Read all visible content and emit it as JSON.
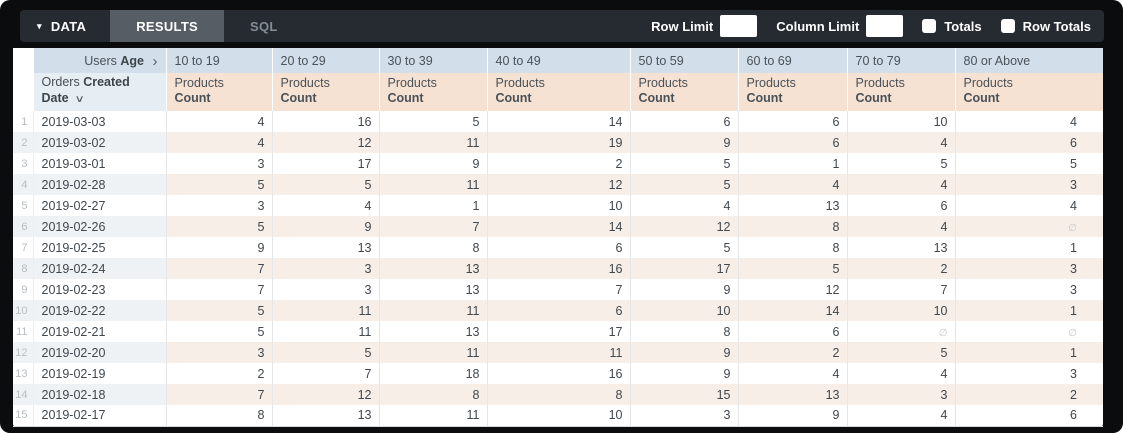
{
  "toolbar": {
    "data_tab": "DATA",
    "results_tab": "RESULTS",
    "sql_tab": "SQL",
    "row_limit_label": "Row Limit",
    "row_limit_value": "",
    "column_limit_label": "Column Limit",
    "column_limit_value": "",
    "totals_label": "Totals",
    "totals_checked": false,
    "row_totals_label": "Row Totals",
    "row_totals_checked": false
  },
  "icons": {
    "caret_down": "▾",
    "chevron_right": "›",
    "chevron_down": "∨",
    "null_symbol": "∅"
  },
  "colors": {
    "toolbar_bg": "#262b32",
    "active_tab_bg": "#565d65",
    "pivot_header_bg": "#d2dfeb",
    "measure_header_bg": "#f6e2d2",
    "row_header_bg": "#e6edf3",
    "stripe_warm": "#f7efe7",
    "stripe_cool": "#eff2f5"
  },
  "table": {
    "pivot_header": {
      "dimension": "Users",
      "field": "Age"
    },
    "row_header": {
      "dimension": "Orders",
      "field": "Created Date"
    },
    "measure": {
      "view": "Products",
      "field": "Count"
    },
    "age_buckets": [
      "10 to 19",
      "20 to 29",
      "30 to 39",
      "40 to 49",
      "50 to 59",
      "60 to 69",
      "70 to 79",
      "80 or Above"
    ],
    "rows": [
      {
        "num": 1,
        "date": "2019-03-03",
        "values": [
          4,
          16,
          5,
          14,
          6,
          6,
          10,
          4
        ]
      },
      {
        "num": 2,
        "date": "2019-03-02",
        "values": [
          4,
          12,
          11,
          19,
          9,
          6,
          4,
          6
        ]
      },
      {
        "num": 3,
        "date": "2019-03-01",
        "values": [
          3,
          17,
          9,
          2,
          5,
          1,
          5,
          5
        ]
      },
      {
        "num": 4,
        "date": "2019-02-28",
        "values": [
          5,
          5,
          11,
          12,
          5,
          4,
          4,
          3
        ]
      },
      {
        "num": 5,
        "date": "2019-02-27",
        "values": [
          3,
          4,
          1,
          10,
          4,
          13,
          6,
          4
        ]
      },
      {
        "num": 6,
        "date": "2019-02-26",
        "values": [
          5,
          9,
          7,
          14,
          12,
          8,
          4,
          null
        ]
      },
      {
        "num": 7,
        "date": "2019-02-25",
        "values": [
          9,
          13,
          8,
          6,
          5,
          8,
          13,
          1
        ]
      },
      {
        "num": 8,
        "date": "2019-02-24",
        "values": [
          7,
          3,
          13,
          16,
          17,
          5,
          2,
          3
        ]
      },
      {
        "num": 9,
        "date": "2019-02-23",
        "values": [
          7,
          3,
          13,
          7,
          9,
          12,
          7,
          3
        ]
      },
      {
        "num": 10,
        "date": "2019-02-22",
        "values": [
          5,
          11,
          11,
          6,
          10,
          14,
          10,
          1
        ]
      },
      {
        "num": 11,
        "date": "2019-02-21",
        "values": [
          5,
          11,
          13,
          17,
          8,
          6,
          null,
          null
        ]
      },
      {
        "num": 12,
        "date": "2019-02-20",
        "values": [
          3,
          5,
          11,
          11,
          9,
          2,
          5,
          1
        ]
      },
      {
        "num": 13,
        "date": "2019-02-19",
        "values": [
          2,
          7,
          18,
          16,
          9,
          4,
          4,
          3
        ]
      },
      {
        "num": 14,
        "date": "2019-02-18",
        "values": [
          7,
          12,
          8,
          8,
          15,
          13,
          3,
          2
        ]
      },
      {
        "num": 15,
        "date": "2019-02-17",
        "values": [
          8,
          13,
          11,
          10,
          3,
          9,
          4,
          6
        ]
      }
    ]
  }
}
